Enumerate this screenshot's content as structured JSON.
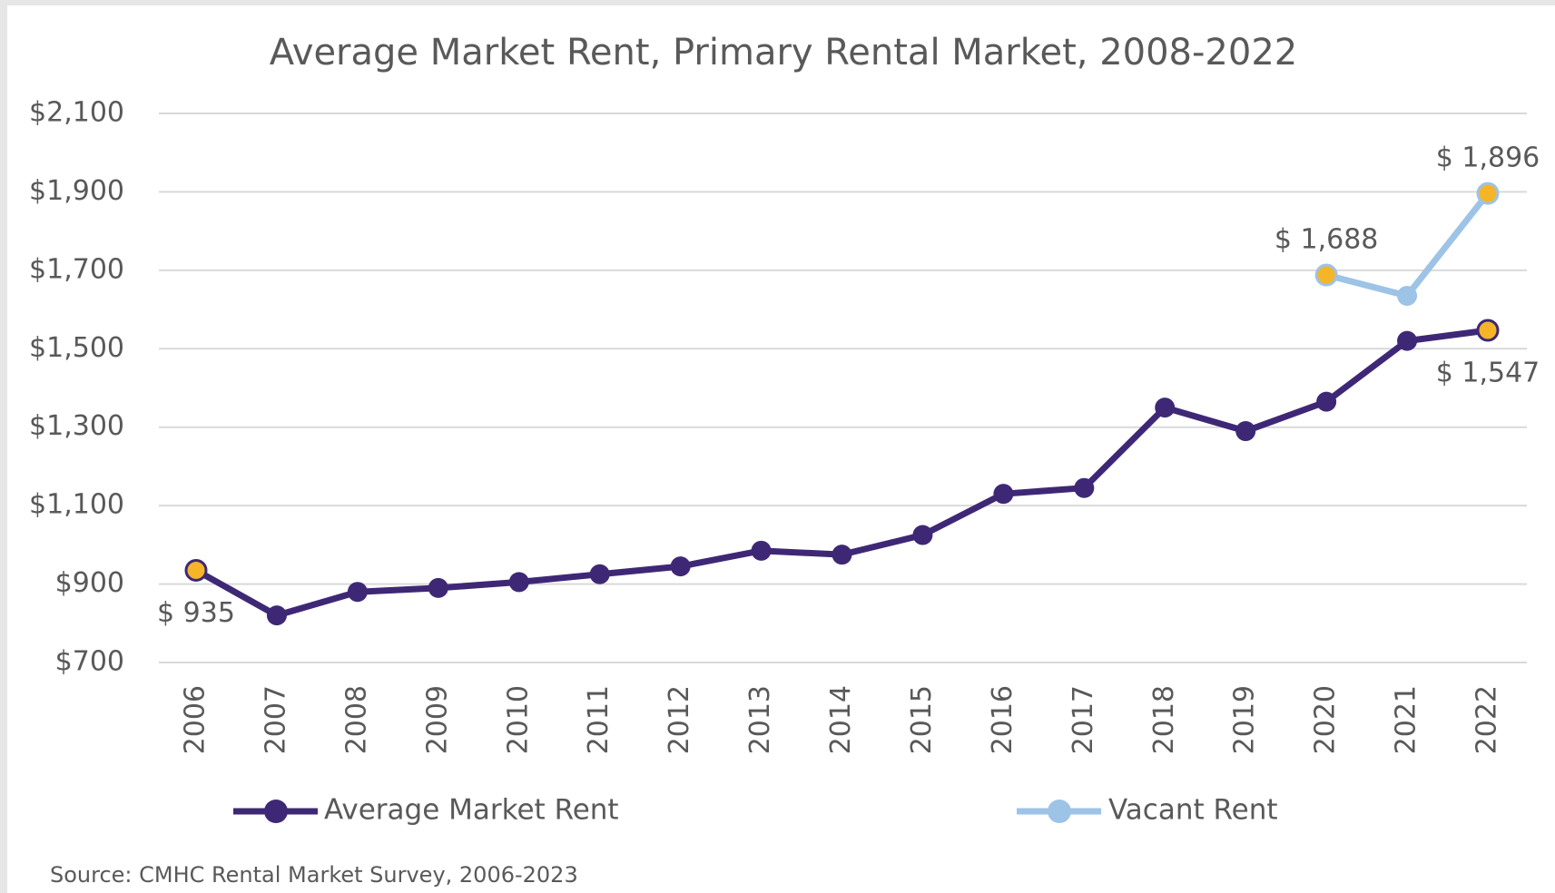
{
  "chart_data": {
    "type": "line",
    "title": "Average Market Rent, Primary Rental Market, 2008-2022",
    "source": "Source: CMHC Rental Market Survey, 2006-2023",
    "categories": [
      "2006",
      "2007",
      "2008",
      "2009",
      "2010",
      "2011",
      "2012",
      "2013",
      "2014",
      "2015",
      "2016",
      "2017",
      "2018",
      "2019",
      "2020",
      "2021",
      "2022"
    ],
    "series": [
      {
        "name": "Average Market Rent",
        "color": "#3e2876",
        "values": [
          935,
          820,
          880,
          890,
          905,
          925,
          945,
          985,
          975,
          1025,
          1130,
          1145,
          1350,
          1290,
          1365,
          1520,
          1547
        ],
        "value_labels": [
          "$ 935",
          null,
          null,
          null,
          null,
          null,
          null,
          null,
          null,
          null,
          null,
          null,
          null,
          null,
          null,
          null,
          "$ 1,547"
        ]
      },
      {
        "name": "Vacant Rent",
        "color": "#9dc3e6",
        "values": [
          null,
          null,
          null,
          null,
          null,
          null,
          null,
          null,
          null,
          null,
          null,
          null,
          null,
          null,
          1688,
          1635,
          1896
        ],
        "value_labels": [
          null,
          null,
          null,
          null,
          null,
          null,
          null,
          null,
          null,
          null,
          null,
          null,
          null,
          null,
          "$ 1,688",
          null,
          "$ 1,896"
        ]
      }
    ],
    "highlight_color": "#f5b526",
    "ylim": [
      700,
      2100
    ],
    "yticks": [
      {
        "value": 700,
        "label": "$700"
      },
      {
        "value": 900,
        "label": "$900"
      },
      {
        "value": 1100,
        "label": "$1,100"
      },
      {
        "value": 1300,
        "label": "$1,300"
      },
      {
        "value": 1500,
        "label": "$1,500"
      },
      {
        "value": 1700,
        "label": "$1,700"
      },
      {
        "value": 1900,
        "label": "$1,900"
      },
      {
        "value": 2100,
        "label": "$2,100"
      }
    ],
    "grid": true,
    "legend": "bottom"
  }
}
